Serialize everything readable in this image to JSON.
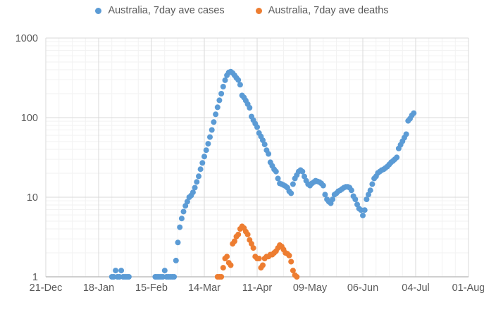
{
  "legend": {
    "cases_label": "Australia, 7day ave cases",
    "deaths_label": "Australia, 7day ave deaths"
  },
  "colors": {
    "cases": "#5B9BD5",
    "deaths": "#ED7D31",
    "axis_text": "#595959",
    "axis_line": "#BFBFBF",
    "gridline_major": "#D9D9D9",
    "gridline_minor": "#F2F2F2",
    "background": "#FFFFFF"
  },
  "chart_data": {
    "type": "scatter",
    "title": "",
    "xlabel": "",
    "ylabel": "",
    "legend_position": "top-center",
    "grid": "major and minor gridlines on",
    "marker": "round dot, ~8px",
    "y_axis": {
      "scale": "log10",
      "min": 1,
      "max": 1000,
      "ticks": [
        1,
        10,
        100,
        1000
      ],
      "tick_labels": [
        "1",
        "10",
        "100",
        "1000"
      ],
      "minor_gridlines": "2-9 per decade"
    },
    "x_axis": {
      "start_date": "2019-12-21",
      "end_date": "2020-08-01",
      "major_tick_interval_days": 28,
      "minor_gridline_interval_days": 7,
      "tick_labels": [
        "21-Dec",
        "18-Jan",
        "15-Feb",
        "14-Mar",
        "11-Apr",
        "09-May",
        "06-Jun",
        "04-Jul",
        "01-Aug"
      ]
    },
    "series": [
      {
        "name": "Australia, 7day ave cases",
        "color_key": "cases",
        "note": "values below 1 (4-16 Feb) fall below log-axis minimum and are not plotted",
        "points": [
          [
            "2020-01-25",
            1.0
          ],
          [
            "2020-01-26",
            1.0
          ],
          [
            "2020-01-27",
            1.2
          ],
          [
            "2020-01-28",
            1.0
          ],
          [
            "2020-01-29",
            1.0
          ],
          [
            "2020-01-30",
            1.2
          ],
          [
            "2020-01-31",
            1.0
          ],
          [
            "2020-02-01",
            1.0
          ],
          [
            "2020-02-02",
            1.0
          ],
          [
            "2020-02-03",
            1.0
          ],
          [
            "2020-02-17",
            1.0
          ],
          [
            "2020-02-18",
            1.0
          ],
          [
            "2020-02-19",
            1.0
          ],
          [
            "2020-02-20",
            1.0
          ],
          [
            "2020-02-21",
            1.0
          ],
          [
            "2020-02-22",
            1.2
          ],
          [
            "2020-02-23",
            1.0
          ],
          [
            "2020-02-24",
            1.0
          ],
          [
            "2020-02-25",
            1.0
          ],
          [
            "2020-02-26",
            1.0
          ],
          [
            "2020-02-27",
            1.0
          ],
          [
            "2020-02-28",
            1.6
          ],
          [
            "2020-02-29",
            2.7
          ],
          [
            "2020-03-01",
            4.2
          ],
          [
            "2020-03-02",
            5.4
          ],
          [
            "2020-03-03",
            6.6
          ],
          [
            "2020-03-04",
            7.8
          ],
          [
            "2020-03-05",
            8.8
          ],
          [
            "2020-03-06",
            10
          ],
          [
            "2020-03-07",
            10.5
          ],
          [
            "2020-03-08",
            11.5
          ],
          [
            "2020-03-09",
            13.2
          ],
          [
            "2020-03-10",
            15.6
          ],
          [
            "2020-03-11",
            18.3
          ],
          [
            "2020-03-12",
            22.5
          ],
          [
            "2020-03-13",
            27
          ],
          [
            "2020-03-14",
            32.5
          ],
          [
            "2020-03-15",
            39
          ],
          [
            "2020-03-16",
            47
          ],
          [
            "2020-03-17",
            57
          ],
          [
            "2020-03-18",
            70
          ],
          [
            "2020-03-19",
            88
          ],
          [
            "2020-03-20",
            110
          ],
          [
            "2020-03-21",
            135
          ],
          [
            "2020-03-22",
            165
          ],
          [
            "2020-03-23",
            200
          ],
          [
            "2020-03-24",
            245
          ],
          [
            "2020-03-25",
            295
          ],
          [
            "2020-03-26",
            340
          ],
          [
            "2020-03-27",
            370
          ],
          [
            "2020-03-28",
            378
          ],
          [
            "2020-03-29",
            363
          ],
          [
            "2020-03-30",
            340
          ],
          [
            "2020-03-31",
            316
          ],
          [
            "2020-04-01",
            297
          ],
          [
            "2020-04-02",
            259
          ],
          [
            "2020-04-03",
            190
          ],
          [
            "2020-04-04",
            179
          ],
          [
            "2020-04-05",
            164
          ],
          [
            "2020-04-06",
            148
          ],
          [
            "2020-04-07",
            133
          ],
          [
            "2020-04-08",
            103
          ],
          [
            "2020-04-09",
            93
          ],
          [
            "2020-04-10",
            84
          ],
          [
            "2020-04-11",
            76
          ],
          [
            "2020-04-12",
            64
          ],
          [
            "2020-04-13",
            58
          ],
          [
            "2020-04-14",
            52
          ],
          [
            "2020-04-15",
            46
          ],
          [
            "2020-04-16",
            39
          ],
          [
            "2020-04-17",
            35
          ],
          [
            "2020-04-18",
            27.5
          ],
          [
            "2020-04-19",
            24.8
          ],
          [
            "2020-04-20",
            22.4
          ],
          [
            "2020-04-21",
            21
          ],
          [
            "2020-04-22",
            17.2
          ],
          [
            "2020-04-23",
            14.9
          ],
          [
            "2020-04-24",
            14.6
          ],
          [
            "2020-04-25",
            14.2
          ],
          [
            "2020-04-26",
            13.8
          ],
          [
            "2020-04-27",
            13.2
          ],
          [
            "2020-04-28",
            11.9
          ],
          [
            "2020-04-29",
            11.2
          ],
          [
            "2020-04-30",
            14.6
          ],
          [
            "2020-05-01",
            17.2
          ],
          [
            "2020-05-02",
            19
          ],
          [
            "2020-05-03",
            21
          ],
          [
            "2020-05-04",
            21.9
          ],
          [
            "2020-05-05",
            21
          ],
          [
            "2020-05-06",
            18.2
          ],
          [
            "2020-05-07",
            16.1
          ],
          [
            "2020-05-08",
            14.6
          ],
          [
            "2020-05-09",
            14
          ],
          [
            "2020-05-10",
            14.9
          ],
          [
            "2020-05-11",
            15.5
          ],
          [
            "2020-05-12",
            16.1
          ],
          [
            "2020-05-13",
            15.8
          ],
          [
            "2020-05-14",
            15.5
          ],
          [
            "2020-05-15",
            14.9
          ],
          [
            "2020-05-16",
            14
          ],
          [
            "2020-05-17",
            10.8
          ],
          [
            "2020-05-18",
            9.4
          ],
          [
            "2020-05-19",
            8.8
          ],
          [
            "2020-05-20",
            8.4
          ],
          [
            "2020-05-21",
            9.4
          ],
          [
            "2020-05-22",
            10.8
          ],
          [
            "2020-05-23",
            11.2
          ],
          [
            "2020-05-24",
            11.9
          ],
          [
            "2020-05-25",
            12.2
          ],
          [
            "2020-05-26",
            12.7
          ],
          [
            "2020-05-27",
            13.2
          ],
          [
            "2020-05-28",
            13.5
          ],
          [
            "2020-05-29",
            13.5
          ],
          [
            "2020-05-30",
            13.2
          ],
          [
            "2020-05-31",
            12.2
          ],
          [
            "2020-06-01",
            10.3
          ],
          [
            "2020-06-02",
            9.4
          ],
          [
            "2020-06-03",
            8.1
          ],
          [
            "2020-06-04",
            7.2
          ],
          [
            "2020-06-05",
            6.9
          ],
          [
            "2020-06-06",
            5.9
          ],
          [
            "2020-06-07",
            6.9
          ],
          [
            "2020-06-08",
            9.4
          ],
          [
            "2020-06-09",
            10.8
          ],
          [
            "2020-06-10",
            12.2
          ],
          [
            "2020-06-11",
            14.6
          ],
          [
            "2020-06-12",
            17.2
          ],
          [
            "2020-06-13",
            18.3
          ],
          [
            "2020-06-14",
            20.2
          ],
          [
            "2020-06-15",
            21
          ],
          [
            "2020-06-16",
            21.9
          ],
          [
            "2020-06-17",
            22.4
          ],
          [
            "2020-06-18",
            23.3
          ],
          [
            "2020-06-19",
            24.3
          ],
          [
            "2020-06-20",
            25.8
          ],
          [
            "2020-06-21",
            27.5
          ],
          [
            "2020-06-22",
            28.6
          ],
          [
            "2020-06-23",
            30
          ],
          [
            "2020-06-24",
            31.7
          ],
          [
            "2020-06-25",
            41
          ],
          [
            "2020-06-26",
            45.5
          ],
          [
            "2020-06-27",
            50.5
          ],
          [
            "2020-06-28",
            56
          ],
          [
            "2020-06-29",
            62
          ],
          [
            "2020-06-30",
            91
          ],
          [
            "2020-07-01",
            97
          ],
          [
            "2020-07-02",
            107
          ],
          [
            "2020-07-03",
            114
          ]
        ]
      },
      {
        "name": "Australia, 7day ave deaths",
        "color_key": "deaths",
        "points": [
          [
            "2020-03-21",
            1.0
          ],
          [
            "2020-03-22",
            1.0
          ],
          [
            "2020-03-23",
            1.0
          ],
          [
            "2020-03-24",
            1.3
          ],
          [
            "2020-03-25",
            1.7
          ],
          [
            "2020-03-26",
            1.8
          ],
          [
            "2020-03-27",
            1.5
          ],
          [
            "2020-03-28",
            1.4
          ],
          [
            "2020-03-29",
            2.6
          ],
          [
            "2020-03-30",
            2.8
          ],
          [
            "2020-03-31",
            3.2
          ],
          [
            "2020-04-01",
            3.4
          ],
          [
            "2020-04-02",
            4.0
          ],
          [
            "2020-04-03",
            4.3
          ],
          [
            "2020-04-04",
            4.1
          ],
          [
            "2020-04-05",
            3.7
          ],
          [
            "2020-04-06",
            3.4
          ],
          [
            "2020-04-07",
            2.9
          ],
          [
            "2020-04-08",
            2.6
          ],
          [
            "2020-04-09",
            2.3
          ],
          [
            "2020-04-10",
            1.8
          ],
          [
            "2020-04-11",
            1.7
          ],
          [
            "2020-04-12",
            1.7
          ],
          [
            "2020-04-13",
            1.3
          ],
          [
            "2020-04-14",
            1.4
          ],
          [
            "2020-04-15",
            1.7
          ],
          [
            "2020-04-16",
            1.8
          ],
          [
            "2020-04-17",
            1.8
          ],
          [
            "2020-04-18",
            1.9
          ],
          [
            "2020-04-19",
            1.9
          ],
          [
            "2020-04-20",
            2.0
          ],
          [
            "2020-04-21",
            2.1
          ],
          [
            "2020-04-22",
            2.3
          ],
          [
            "2020-04-23",
            2.5
          ],
          [
            "2020-04-24",
            2.4
          ],
          [
            "2020-04-25",
            2.2
          ],
          [
            "2020-04-26",
            2.0
          ],
          [
            "2020-04-27",
            1.95
          ],
          [
            "2020-04-28",
            1.85
          ],
          [
            "2020-04-29",
            1.55
          ],
          [
            "2020-04-30",
            1.2
          ],
          [
            "2020-05-01",
            1.05
          ],
          [
            "2020-05-02",
            1.0
          ]
        ]
      }
    ]
  }
}
